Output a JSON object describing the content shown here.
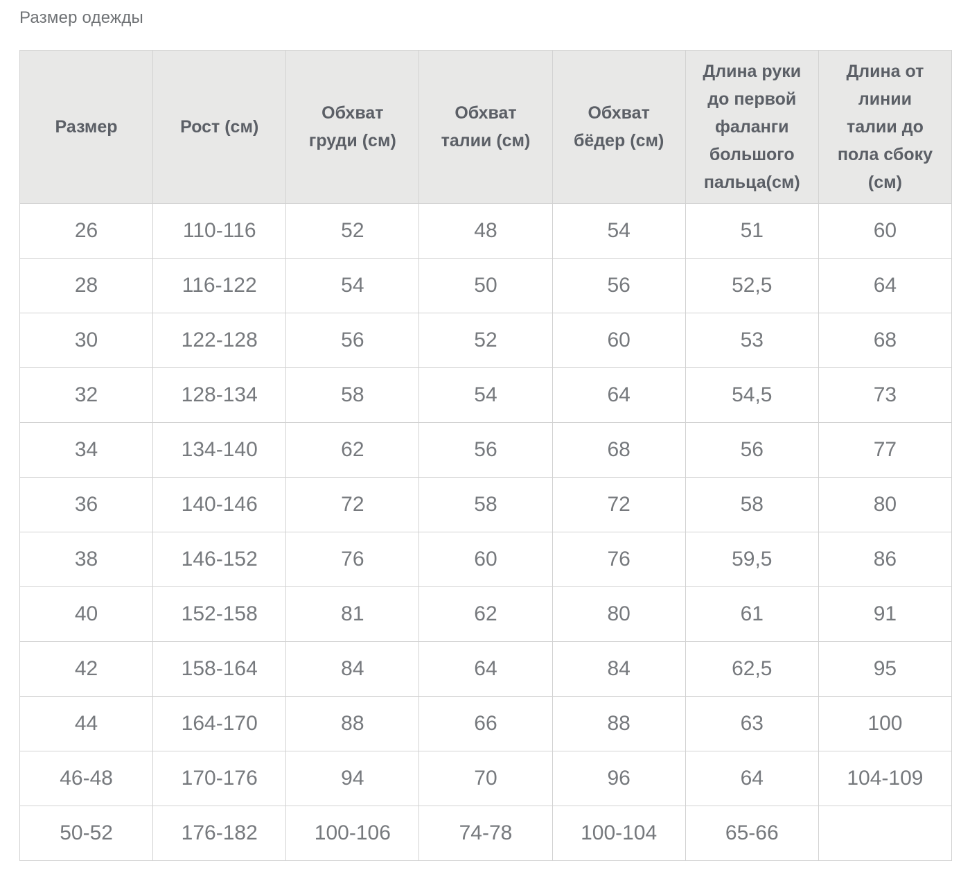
{
  "chart_data": {
    "type": "table",
    "title": "Размер одежды",
    "columns": [
      "Размер",
      "Рост (см)",
      "Обхват\nгруди (см)",
      "Обхват\nталии (см)",
      "Обхват\nбёдер (см)",
      "Длина руки\nдо первой\nфаланги\nбольшого\nпальца(см)",
      "Длина от\nлинии\nталии до\nпола сбоку\n(см)"
    ],
    "rows": [
      [
        "26",
        "110-116",
        "52",
        "48",
        "54",
        "51",
        "60"
      ],
      [
        "28",
        "116-122",
        "54",
        "50",
        "56",
        "52,5",
        "64"
      ],
      [
        "30",
        "122-128",
        "56",
        "52",
        "60",
        "53",
        "68"
      ],
      [
        "32",
        "128-134",
        "58",
        "54",
        "64",
        "54,5",
        "73"
      ],
      [
        "34",
        "134-140",
        "62",
        "56",
        "68",
        "56",
        "77"
      ],
      [
        "36",
        "140-146",
        "72",
        "58",
        "72",
        "58",
        "80"
      ],
      [
        "38",
        "146-152",
        "76",
        "60",
        "76",
        "59,5",
        "86"
      ],
      [
        "40",
        "152-158",
        "81",
        "62",
        "80",
        "61",
        "91"
      ],
      [
        "42",
        "158-164",
        "84",
        "64",
        "84",
        "62,5",
        "95"
      ],
      [
        "44",
        "164-170",
        "88",
        "66",
        "88",
        "63",
        "100"
      ],
      [
        "46-48",
        "170-176",
        "94",
        "70",
        "96",
        "64",
        "104-109"
      ],
      [
        "50-52",
        "176-182",
        "100-106",
        "74-78",
        "100-104",
        "65-66",
        ""
      ]
    ],
    "layout": {
      "grid": "full-borders",
      "header_position": "top"
    }
  },
  "colors": {
    "header_background": "#e8e8e7",
    "border": "#d2d2d2",
    "header_text": "#5b5f66",
    "cell_text": "#76797d",
    "title_text": "#6f7275",
    "page_background": "#ffffff"
  }
}
